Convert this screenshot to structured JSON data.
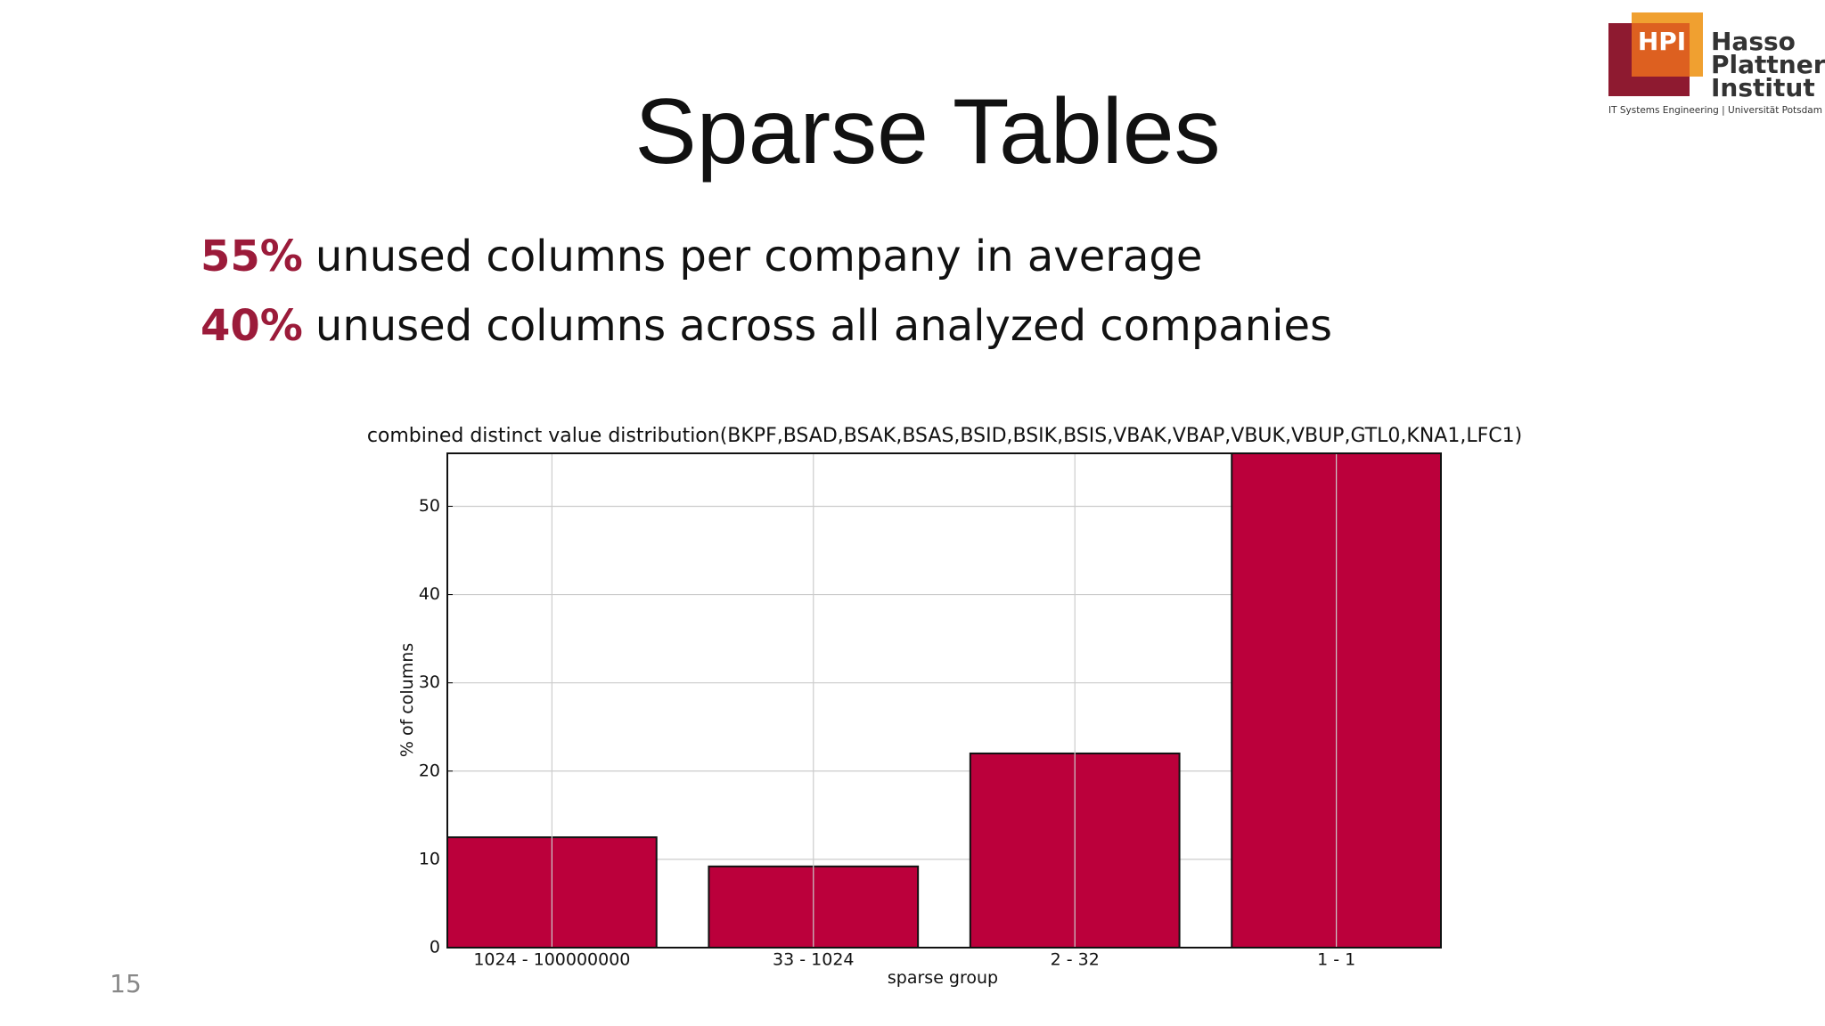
{
  "slide": {
    "title": "Sparse Tables",
    "bullets": [
      {
        "highlight": "55%",
        "text": "unused columns per company in average"
      },
      {
        "highlight": "40%",
        "text": "unused columns across all analyzed companies"
      }
    ],
    "page_number": "15"
  },
  "logo": {
    "mark": "HPI",
    "lines": [
      "Hasso",
      "Plattner",
      "Institut"
    ],
    "tagline": "IT Systems Engineering | Universität Potsdam"
  },
  "chart_data": {
    "type": "bar",
    "title": "combined distinct value distribution(BKPF,BSAD,BSAK,BSAS,BSID,BSIK,BSIS,VBAK,VBAP,VBUK,VBUP,GTL0,KNA1,LFC1)",
    "x_label": "sparse group",
    "y_label": "% of columns",
    "categories": [
      "1024 - 100000000",
      "33 - 1024",
      "2 - 32",
      "1 - 1"
    ],
    "values": [
      12.5,
      9.2,
      22,
      56
    ],
    "color": "#bb003b",
    "ylim": [
      0,
      56
    ],
    "yticks": [
      0,
      10,
      20,
      30,
      40,
      50
    ],
    "grid": true
  }
}
